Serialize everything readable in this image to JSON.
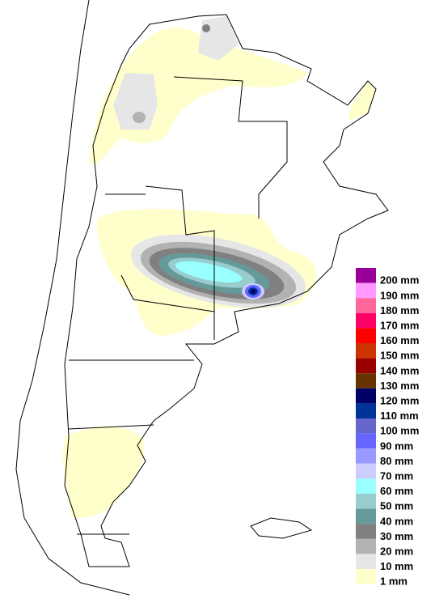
{
  "legend": {
    "items": [
      {
        "label": "200 mm",
        "color": "#990099"
      },
      {
        "label": "190 mm",
        "color": "#ff99ff"
      },
      {
        "label": "180 mm",
        "color": "#ff6699"
      },
      {
        "label": "170 mm",
        "color": "#ff0066"
      },
      {
        "label": "160 mm",
        "color": "#ff0000"
      },
      {
        "label": "150 mm",
        "color": "#cc3300"
      },
      {
        "label": "140 mm",
        "color": "#990000"
      },
      {
        "label": "130 mm",
        "color": "#663300"
      },
      {
        "label": "120 mm",
        "color": "#000066"
      },
      {
        "label": "110 mm",
        "color": "#003399"
      },
      {
        "label": "100 mm",
        "color": "#6666cc"
      },
      {
        "label": "90 mm",
        "color": "#6666ff"
      },
      {
        "label": "80 mm",
        "color": "#9999ff"
      },
      {
        "label": "70 mm",
        "color": "#ccccff"
      },
      {
        "label": "60 mm",
        "color": "#99ffff"
      },
      {
        "label": "50 mm",
        "color": "#99cccc"
      },
      {
        "label": "40 mm",
        "color": "#669999"
      },
      {
        "label": "30 mm",
        "color": "#808080"
      },
      {
        "label": "20 mm",
        "color": "#b2b2b2"
      },
      {
        "label": "10 mm",
        "color": "#e6e6e6"
      },
      {
        "label": "1 mm",
        "color": "#ffffcc"
      }
    ]
  }
}
